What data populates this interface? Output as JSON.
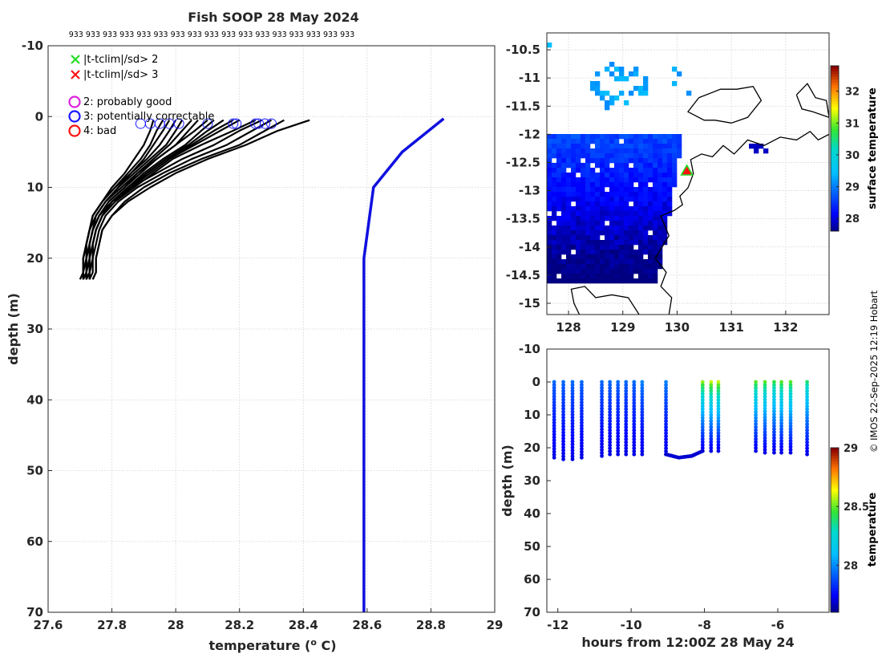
{
  "title": "Fish SOOP 28 May 2024",
  "counts_row": "933 933 933 933 933 933 933 933 933 933 933 933 933 933 933 933 933",
  "copyright": "© IMOS 22-Sep-2025 12:19 Hobart",
  "colors": {
    "profile": "#000000",
    "climatology": "#1010e0",
    "qc_good": "#dd22dd",
    "qc_correctable": "#1a1aff",
    "qc_bad": "#ff1111",
    "flag2": "#22dd22",
    "flag3": "#ff1111"
  },
  "legend": {
    "flags": [
      {
        "label": "|t-tclim|/sd> 2",
        "marker": "x",
        "color": "#22dd22"
      },
      {
        "label": "|t-tclim|/sd> 3",
        "marker": "x",
        "color": "#ff1111"
      }
    ],
    "qc": [
      {
        "label": "2: probably good",
        "marker": "o",
        "color": "#dd22dd"
      },
      {
        "label": "3: potentially correctable",
        "marker": "o",
        "color": "#1a1aff"
      },
      {
        "label": "4: bad",
        "marker": "o",
        "color": "#ff1111"
      }
    ]
  },
  "chart_data": [
    {
      "id": "profile_panel",
      "type": "line",
      "xlabel": "temperature (",
      "xlabel_sup": "o",
      "xlabel_end": " C)",
      "ylabel": "depth (m)",
      "xlim": [
        27.6,
        29
      ],
      "ylim": [
        -10,
        70
      ],
      "y_reversed": true,
      "grid": true,
      "xticks": [
        "27.6",
        "27.8",
        "28",
        "28.2",
        "28.4",
        "28.6",
        "28.8",
        "29"
      ],
      "yticks": [
        "-10",
        "0",
        "10",
        "20",
        "30",
        "40",
        "50",
        "60",
        "70"
      ],
      "climatology": {
        "x": [
          28.84,
          28.71,
          28.62,
          28.59,
          28.59
        ],
        "y": [
          0.3,
          5,
          10,
          20,
          70
        ]
      },
      "profile_depths": [
        0.5,
        2,
        4,
        6,
        8,
        10,
        12,
        14,
        16,
        18,
        20,
        22,
        23
      ],
      "profiles": [
        [
          28.34,
          28.28,
          28.2,
          28.08,
          27.98,
          27.9,
          27.84,
          27.8,
          27.77,
          27.76,
          27.75,
          27.75,
          27.74
        ],
        [
          28.3,
          28.24,
          28.16,
          28.05,
          27.96,
          27.88,
          27.82,
          27.78,
          27.76,
          27.75,
          27.74,
          27.74,
          27.73
        ],
        [
          28.27,
          28.2,
          28.12,
          28.02,
          27.94,
          27.86,
          27.81,
          27.77,
          27.75,
          27.74,
          27.74,
          27.73,
          27.73
        ],
        [
          28.42,
          28.32,
          28.22,
          28.1,
          28.0,
          27.92,
          27.85,
          27.8,
          27.77,
          27.76,
          27.75,
          27.75,
          27.74
        ],
        [
          28.2,
          28.14,
          28.06,
          27.98,
          27.92,
          27.86,
          27.8,
          27.77,
          27.75,
          27.74,
          27.73,
          27.73,
          27.72
        ],
        [
          28.15,
          28.1,
          28.04,
          27.97,
          27.91,
          27.85,
          27.8,
          27.76,
          27.74,
          27.73,
          27.73,
          27.72,
          27.72
        ],
        [
          28.1,
          28.06,
          28.0,
          27.94,
          27.89,
          27.84,
          27.79,
          27.76,
          27.74,
          27.73,
          27.72,
          27.72,
          27.72
        ],
        [
          28.05,
          28.02,
          27.98,
          27.93,
          27.88,
          27.83,
          27.78,
          27.75,
          27.74,
          27.73,
          27.72,
          27.72,
          27.71
        ],
        [
          28.0,
          27.98,
          27.95,
          27.91,
          27.86,
          27.82,
          27.78,
          27.75,
          27.73,
          27.72,
          27.72,
          27.71,
          27.71
        ],
        [
          27.96,
          27.94,
          27.92,
          27.89,
          27.85,
          27.81,
          27.77,
          27.74,
          27.73,
          27.72,
          27.71,
          27.71,
          27.71
        ],
        [
          27.93,
          27.92,
          27.9,
          27.87,
          27.84,
          27.8,
          27.77,
          27.74,
          27.73,
          27.72,
          27.71,
          27.71,
          27.7
        ],
        [
          28.25,
          28.18,
          28.08,
          27.99,
          27.93,
          27.87,
          27.81,
          27.77,
          27.75,
          27.74,
          27.74,
          27.73,
          27.73
        ],
        [
          28.12,
          28.08,
          28.03,
          27.96,
          27.9,
          27.85,
          27.8,
          27.76,
          27.74,
          27.73,
          27.73,
          27.72,
          27.72
        ],
        [
          28.02,
          28.0,
          27.97,
          27.92,
          27.87,
          27.82,
          27.78,
          27.75,
          27.73,
          27.72,
          27.72,
          27.72,
          27.71
        ],
        [
          27.98,
          27.96,
          27.93,
          27.9,
          27.86,
          27.81,
          27.77,
          27.74,
          27.73,
          27.72,
          27.71,
          27.71,
          27.71
        ],
        [
          28.18,
          28.12,
          28.05,
          27.97,
          27.91,
          27.86,
          27.8,
          27.77,
          27.75,
          27.74,
          27.73,
          27.73,
          27.72
        ],
        [
          28.07,
          28.04,
          28.0,
          27.94,
          27.88,
          27.84,
          27.79,
          27.76,
          27.74,
          27.73,
          27.72,
          27.72,
          27.72
        ]
      ],
      "qc3_markers": {
        "x": [
          27.89,
          27.92,
          27.95,
          27.98,
          28.01,
          28.1,
          28.18,
          28.19,
          28.25,
          28.26,
          28.28,
          28.3
        ],
        "y": [
          1,
          1,
          1,
          1,
          1,
          1,
          1,
          1,
          1,
          1,
          1,
          1
        ]
      }
    },
    {
      "id": "sst_map",
      "type": "heatmap",
      "colorbar_label": "surface temperature",
      "xlim": [
        127.6,
        132.8
      ],
      "ylim": [
        -15.2,
        -10.2
      ],
      "xticks": [
        "128",
        "129",
        "130",
        "131",
        "132"
      ],
      "yticks": [
        "-10.5",
        "-11",
        "-11.5",
        "-12",
        "-12.5",
        "-13",
        "-13.5",
        "-14",
        "-14.5",
        "-15"
      ],
      "colorbar_range": [
        27.6,
        32.8
      ],
      "colorbar_ticks": [
        "28",
        "29",
        "30",
        "31",
        "32"
      ],
      "station": {
        "lon": 130.18,
        "lat": -12.65
      }
    },
    {
      "id": "section",
      "type": "scatter",
      "xlabel": "hours from 12:00Z 28 May 24",
      "ylabel": "depth (m)",
      "colorbar_label": "temperature",
      "xlim": [
        -12.3,
        -4.6
      ],
      "ylim": [
        -10,
        70
      ],
      "y_reversed": true,
      "grid": false,
      "xticks": [
        "-12",
        "-10",
        "-8",
        "-6"
      ],
      "yticks": [
        "-10",
        "0",
        "10",
        "20",
        "30",
        "40",
        "50",
        "60",
        "70"
      ],
      "colorbar_range": [
        27.6,
        29
      ],
      "colorbar_ticks": [
        "28",
        "28.5",
        "29"
      ],
      "casts": [
        {
          "t": -12.1,
          "maxd": 23,
          "sst": 27.95
        },
        {
          "t": -11.85,
          "maxd": 23.5,
          "sst": 27.95
        },
        {
          "t": -11.6,
          "maxd": 23.5,
          "sst": 27.95
        },
        {
          "t": -11.35,
          "maxd": 23,
          "sst": 27.95
        },
        {
          "t": -10.8,
          "maxd": 22.5,
          "sst": 27.95
        },
        {
          "t": -10.58,
          "maxd": 22,
          "sst": 27.95
        },
        {
          "t": -10.36,
          "maxd": 22,
          "sst": 27.95
        },
        {
          "t": -10.14,
          "maxd": 22,
          "sst": 27.95
        },
        {
          "t": -9.92,
          "maxd": 22,
          "sst": 27.95
        },
        {
          "t": -9.7,
          "maxd": 22,
          "sst": 28.0
        },
        {
          "t": -9.05,
          "maxd": 22,
          "sst": 28.0
        },
        {
          "t": -8.05,
          "maxd": 21,
          "sst": 28.55
        },
        {
          "t": -7.82,
          "maxd": 21,
          "sst": 28.6
        },
        {
          "t": -7.62,
          "maxd": 21,
          "sst": 28.6
        },
        {
          "t": -6.6,
          "maxd": 21,
          "sst": 28.5
        },
        {
          "t": -6.35,
          "maxd": 21.5,
          "sst": 28.5
        },
        {
          "t": -6.1,
          "maxd": 21.5,
          "sst": 28.45
        },
        {
          "t": -5.9,
          "maxd": 21.5,
          "sst": 28.5
        },
        {
          "t": -5.65,
          "maxd": 21.5,
          "sst": 28.5
        },
        {
          "t": -5.2,
          "maxd": 22,
          "sst": 28.4
        }
      ],
      "bottom_track": {
        "t": [
          -9.05,
          -8.7,
          -8.35,
          -8.05
        ],
        "d": [
          22,
          23,
          22.5,
          21
        ]
      }
    }
  ]
}
